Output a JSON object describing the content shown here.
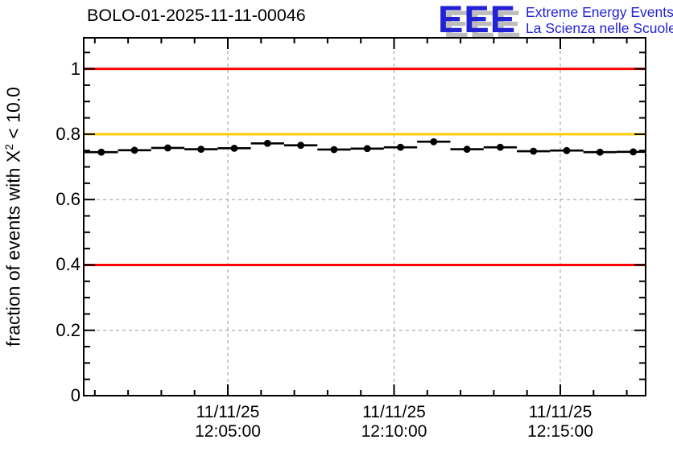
{
  "logo": {
    "acronym": "EEE",
    "line1": "Extreme Energy Events",
    "line2": "La Scienza nelle Scuole",
    "blue": "#2222d4",
    "shadow_gray": "#bcbcbc"
  },
  "chart_data": {
    "type": "line",
    "title": "BOLO-01-2025-11-11-00046",
    "ylabel": "fraction of events with X² < 10.0",
    "ylabel_parts": {
      "prefix": "fraction of events with X",
      "sup": "2",
      "suffix": " < 10.0"
    },
    "xlabel": "",
    "x_date": "11/11/25",
    "x": [
      "12:01",
      "12:02",
      "12:03",
      "12:04",
      "12:05",
      "12:06",
      "12:07",
      "12:08",
      "12:09",
      "12:10",
      "12:11",
      "12:12",
      "12:13",
      "12:14",
      "12:15",
      "12:16",
      "12:17"
    ],
    "values": [
      0.745,
      0.751,
      0.758,
      0.754,
      0.757,
      0.772,
      0.766,
      0.753,
      0.756,
      0.76,
      0.777,
      0.754,
      0.76,
      0.748,
      0.75,
      0.745,
      0.746
    ],
    "bin_width_seconds": 60,
    "x_tick_labels": [
      {
        "date": "11/11/25",
        "time": "12:05:00"
      },
      {
        "date": "11/11/25",
        "time": "12:10:00"
      },
      {
        "date": "11/11/25",
        "time": "12:15:00"
      }
    ],
    "y_ticks": [
      0,
      0.2,
      0.4,
      0.6,
      0.8,
      1
    ],
    "y_tick_labels": [
      "0",
      "0.2",
      "0.4",
      "0.6",
      "0.8",
      "1"
    ],
    "y_minor_step": 0.05,
    "ylim": [
      0,
      1.095
    ],
    "grid": true,
    "grid_color": "#999999",
    "ref_lines": [
      {
        "value": 1.0,
        "color": "#ff0000"
      },
      {
        "value": 0.8,
        "color": "#ffcc00"
      },
      {
        "value": 0.4,
        "color": "#ff0000"
      }
    ],
    "marker_color": "#000000",
    "frame_color": "#000000",
    "legend": null
  }
}
